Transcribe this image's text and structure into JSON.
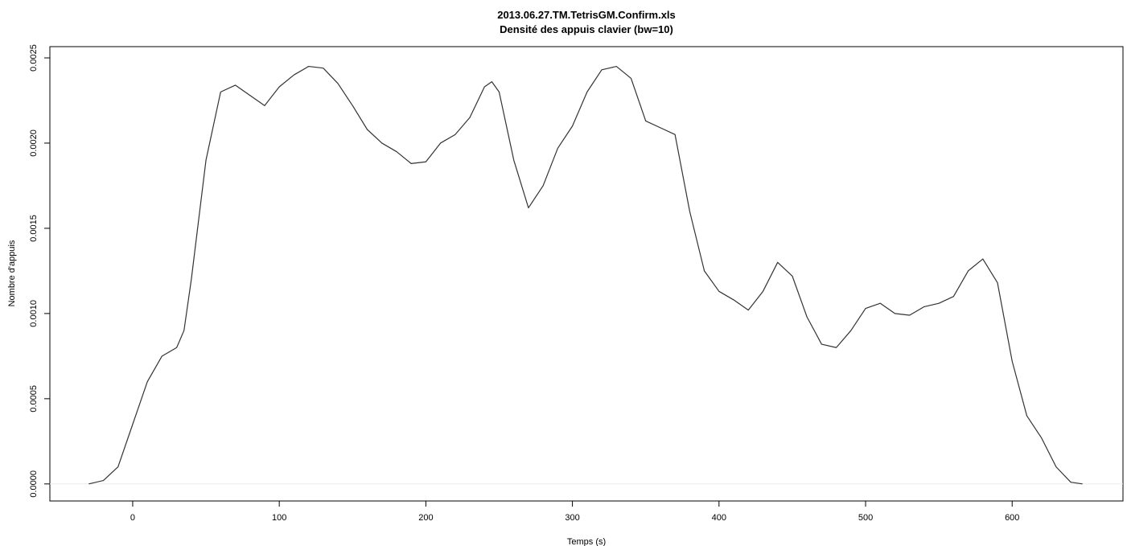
{
  "chart_data": {
    "type": "line",
    "title": "2013.06.27.TM.TetrisGM.Confirm.xls",
    "subtitle": "Densité des appuis clavier (bw=10)",
    "x_label": "Temps (s)",
    "y_label": "Nombre d'appuis",
    "color": "#333333",
    "x": [
      -30,
      -20,
      -10,
      0,
      10,
      20,
      30,
      35,
      40,
      50,
      60,
      70,
      80,
      90,
      100,
      110,
      120,
      130,
      140,
      150,
      160,
      170,
      180,
      190,
      200,
      210,
      220,
      230,
      240,
      245,
      250,
      260,
      270,
      280,
      290,
      300,
      310,
      320,
      330,
      340,
      350,
      360,
      370,
      380,
      390,
      400,
      410,
      420,
      430,
      440,
      450,
      460,
      470,
      480,
      490,
      500,
      510,
      520,
      530,
      540,
      550,
      560,
      570,
      580,
      590,
      600,
      610,
      620,
      630,
      640,
      648
    ],
    "values": [
      0,
      2e-05,
      0.0001,
      0.00035,
      0.0006,
      0.00075,
      0.0008,
      0.0009,
      0.0012,
      0.0019,
      0.0023,
      0.00234,
      0.00228,
      0.00222,
      0.00233,
      0.0024,
      0.00245,
      0.00244,
      0.00235,
      0.00222,
      0.00208,
      0.002,
      0.00195,
      0.00188,
      0.00189,
      0.002,
      0.00205,
      0.00215,
      0.00233,
      0.00236,
      0.0023,
      0.0019,
      0.00162,
      0.00175,
      0.00197,
      0.0021,
      0.0023,
      0.00243,
      0.00245,
      0.00238,
      0.00213,
      0.00209,
      0.00205,
      0.0016,
      0.00125,
      0.00113,
      0.00108,
      0.00102,
      0.00113,
      0.0013,
      0.00122,
      0.00098,
      0.00082,
      0.0008,
      0.0009,
      0.00103,
      0.00106,
      0.001,
      0.00099,
      0.00104,
      0.00106,
      0.0011,
      0.00125,
      0.00132,
      0.00118,
      0.00072,
      0.0004,
      0.00027,
      0.0001,
      1e-05,
      0
    ],
    "xlim": [
      -56.5,
      675.6
    ],
    "ylim": [
      -0.0001,
      0.002566
    ],
    "xticks": [
      0,
      100,
      200,
      300,
      400,
      500,
      600
    ],
    "yticks": [
      {
        "value": 0,
        "label": "0.0000"
      },
      {
        "value": 0.0005,
        "label": "0.0005"
      },
      {
        "value": 0.001,
        "label": "0.0010"
      },
      {
        "value": 0.0015,
        "label": "0.0015"
      },
      {
        "value": 0.002,
        "label": "0.0020"
      },
      {
        "value": 0.0025,
        "label": "0.0025"
      }
    ]
  }
}
